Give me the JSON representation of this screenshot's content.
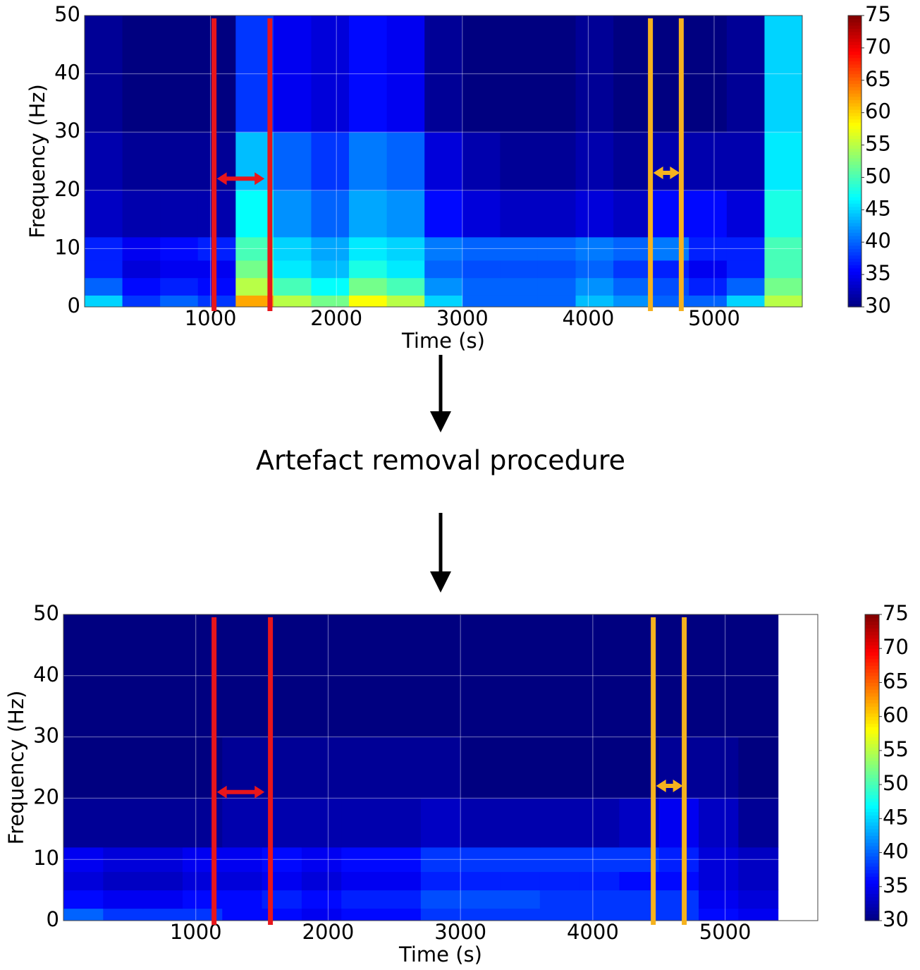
{
  "chart_data": [
    {
      "type": "spectrogram",
      "xlabel": "Time (s)",
      "ylabel": "Frequency (Hz)",
      "xlim": [
        0,
        5700
      ],
      "ylim": [
        0,
        50
      ],
      "xticks": [
        1000,
        2000,
        3000,
        4000,
        5000
      ],
      "yticks": [
        0,
        10,
        20,
        30,
        40,
        50
      ],
      "grid": true,
      "colormap": "jet",
      "clim": [
        30,
        75
      ],
      "cticks": [
        30,
        35,
        40,
        45,
        50,
        55,
        60,
        65,
        70,
        75
      ],
      "xbins": [
        0,
        300,
        600,
        900,
        1200,
        1500,
        1800,
        2100,
        2400,
        2700,
        3000,
        3300,
        3600,
        3900,
        4200,
        4500,
        4800,
        5100,
        5400,
        5700
      ],
      "ybins": [
        0,
        2,
        5,
        8,
        12,
        20,
        30,
        50
      ],
      "z": [
        [
          45,
          38,
          40,
          38,
          62,
          55,
          52,
          58,
          55,
          45,
          40,
          40,
          40,
          44,
          42,
          40,
          40,
          45,
          55
        ],
        [
          40,
          36,
          37,
          36,
          55,
          50,
          47,
          52,
          50,
          42,
          40,
          40,
          40,
          42,
          40,
          39,
          37,
          40,
          52
        ],
        [
          37,
          34,
          35,
          35,
          52,
          46,
          44,
          48,
          46,
          40,
          39,
          39,
          39,
          40,
          38,
          37,
          35,
          37,
          50
        ],
        [
          37,
          35,
          36,
          37,
          50,
          45,
          43,
          46,
          45,
          41,
          40,
          40,
          40,
          41,
          40,
          41,
          37,
          37,
          50
        ],
        [
          33,
          32,
          32,
          32,
          47,
          42,
          40,
          43,
          42,
          36,
          34,
          33,
          33,
          34,
          33,
          36,
          36,
          34,
          48
        ],
        [
          32,
          31,
          31,
          31,
          44,
          40,
          38,
          41,
          40,
          34,
          32,
          31,
          31,
          32,
          31,
          32,
          32,
          32,
          46
        ],
        [
          31,
          30,
          30,
          30,
          38,
          35,
          34,
          36,
          35,
          31,
          30,
          30,
          30,
          31,
          30,
          30,
          30,
          31,
          45
        ]
      ],
      "markers": [
        {
          "x": 1028,
          "color": "#e8161b"
        },
        {
          "x": 1472,
          "color": "#e8161b"
        },
        {
          "x": 4494,
          "color": "#f5b21e"
        },
        {
          "x": 4739,
          "color": "#f5b21e"
        }
      ],
      "arrows": [
        {
          "x1": 1028,
          "x2": 1440,
          "y": 22,
          "color": "#e8161b"
        },
        {
          "x1": 4494,
          "x2": 4739,
          "y": 23,
          "color": "#f5b21e"
        }
      ]
    },
    {
      "type": "spectrogram",
      "xlabel": "Time (s)",
      "ylabel": "Frequency (Hz)",
      "xlim": [
        0,
        5700
      ],
      "ylim": [
        0,
        50
      ],
      "xticks": [
        1000,
        2000,
        3000,
        4000,
        5000
      ],
      "yticks": [
        0,
        10,
        20,
        30,
        40,
        50
      ],
      "grid": true,
      "colormap": "jet",
      "clim": [
        30,
        75
      ],
      "cticks": [
        30,
        35,
        40,
        45,
        50,
        55,
        60,
        65,
        70,
        75
      ],
      "xbins": [
        0,
        300,
        600,
        900,
        1200,
        1500,
        1800,
        2100,
        2400,
        2700,
        3000,
        3300,
        3600,
        3900,
        4200,
        4500,
        4800,
        5100,
        5400,
        5700
      ],
      "ybins": [
        0,
        2,
        5,
        8,
        12,
        20,
        30,
        50
      ],
      "z": [
        [
          40,
          38,
          38,
          38,
          36,
          36,
          35,
          36,
          36,
          38,
          38,
          38,
          38,
          38,
          38,
          38,
          36,
          35,
          null
        ],
        [
          36,
          35,
          35,
          36,
          36,
          37,
          36,
          37,
          37,
          39,
          39,
          39,
          38,
          38,
          38,
          38,
          35,
          34,
          null
        ],
        [
          34,
          33,
          33,
          34,
          34,
          35,
          34,
          35,
          35,
          37,
          37,
          37,
          37,
          37,
          36,
          36,
          34,
          33,
          null
        ],
        [
          35,
          34,
          34,
          35,
          35,
          36,
          35,
          36,
          36,
          38,
          38,
          38,
          38,
          38,
          38,
          37,
          34,
          33,
          null
        ],
        [
          31,
          31,
          31,
          31,
          32,
          32,
          32,
          32,
          32,
          33,
          32,
          32,
          32,
          32,
          33,
          35,
          33,
          31,
          null
        ],
        [
          30,
          30,
          30,
          30,
          31,
          31,
          31,
          31,
          31,
          31,
          30,
          30,
          30,
          30,
          30,
          31,
          31,
          30,
          null
        ],
        [
          30,
          30,
          30,
          30,
          30,
          30,
          30,
          30,
          30,
          30,
          30,
          30,
          30,
          30,
          30,
          30,
          30,
          30,
          null
        ]
      ],
      "markers": [
        {
          "x": 1138,
          "color": "#e8161b"
        },
        {
          "x": 1564,
          "color": "#e8161b"
        },
        {
          "x": 4457,
          "color": "#f5b21e"
        },
        {
          "x": 4691,
          "color": "#f5b21e"
        }
      ],
      "arrows": [
        {
          "x1": 1138,
          "x2": 1530,
          "y": 21,
          "color": "#e8161b"
        },
        {
          "x1": 4457,
          "x2": 4691,
          "y": 22,
          "color": "#f5b21e"
        }
      ]
    }
  ],
  "caption": "Artefact removal procedure"
}
